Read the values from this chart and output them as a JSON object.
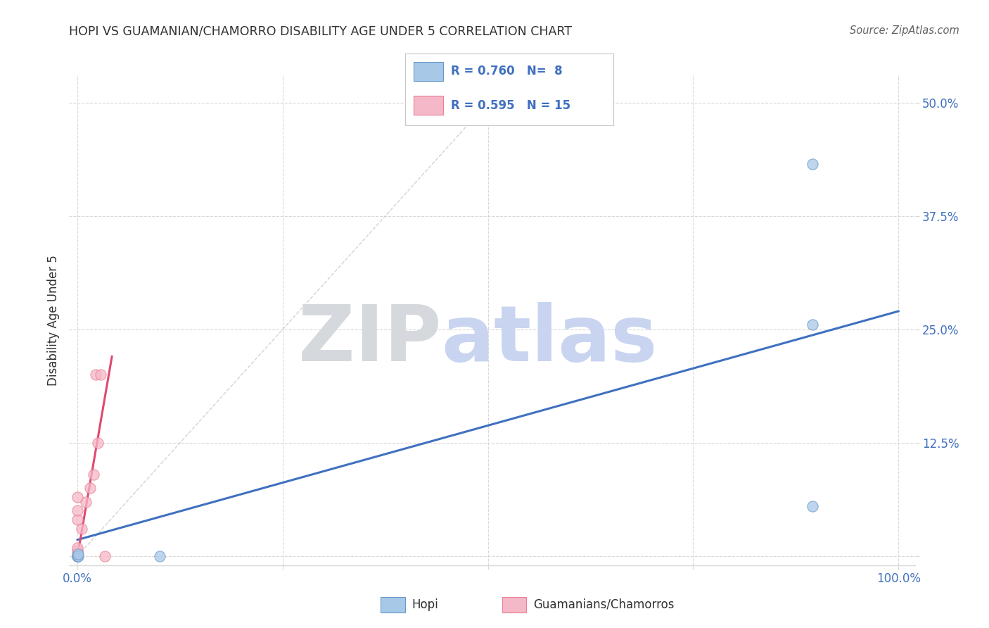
{
  "title": "HOPI VS GUAMANIAN/CHAMORRO DISABILITY AGE UNDER 5 CORRELATION CHART",
  "source": "Source: ZipAtlas.com",
  "ylabel": "Disability Age Under 5",
  "watermark_zip": "ZIP",
  "watermark_atlas": "atlas",
  "legend_blue_R": "0.760",
  "legend_blue_N": " 8",
  "legend_pink_R": "0.595",
  "legend_pink_N": "15",
  "hopi_x": [
    0.0,
    0.0,
    0.001,
    0.001,
    0.1,
    0.895,
    0.895,
    0.895
  ],
  "hopi_y": [
    0.0,
    0.0,
    0.0,
    0.002,
    0.0,
    0.055,
    0.255,
    0.432
  ],
  "guam_x": [
    0.0,
    0.0,
    0.0,
    0.0,
    0.005,
    0.01,
    0.015,
    0.02,
    0.025,
    0.022,
    0.028,
    0.033,
    0.0,
    0.0,
    0.0
  ],
  "guam_y": [
    0.0,
    0.003,
    0.006,
    0.009,
    0.03,
    0.06,
    0.075,
    0.09,
    0.125,
    0.2,
    0.2,
    0.0,
    0.04,
    0.05,
    0.065
  ],
  "blue_line_x": [
    0.0,
    1.0
  ],
  "blue_line_y": [
    0.018,
    0.27
  ],
  "pink_line_x": [
    0.0,
    0.042
  ],
  "pink_line_y": [
    0.0,
    0.22
  ],
  "ref_line_x": [
    0.0,
    0.52
  ],
  "ref_line_y": [
    0.0,
    0.52
  ],
  "xlim": [
    -0.01,
    1.02
  ],
  "ylim": [
    -0.01,
    0.53
  ],
  "xticks": [
    0.0,
    0.25,
    0.5,
    0.75,
    1.0
  ],
  "xticklabels": [
    "0.0%",
    "",
    "",
    "",
    "100.0%"
  ],
  "yticks": [
    0.0,
    0.125,
    0.25,
    0.375,
    0.5
  ],
  "yticklabels": [
    "",
    "12.5%",
    "25.0%",
    "37.5%",
    "50.0%"
  ],
  "hopi_color": "#a8c8e8",
  "guam_color": "#f5b8c8",
  "hopi_edge_color": "#6898c8",
  "guam_edge_color": "#e88090",
  "blue_line_color": "#4070c0",
  "pink_line_color": "#e04870",
  "ref_line_color": "#c8c8c8",
  "grid_color": "#d8d8d8",
  "title_color": "#303030",
  "axis_label_color": "#4070c0",
  "source_color": "#606060",
  "watermark_color": "#d8dff0",
  "marker_size": 120,
  "background_color": "#ffffff"
}
